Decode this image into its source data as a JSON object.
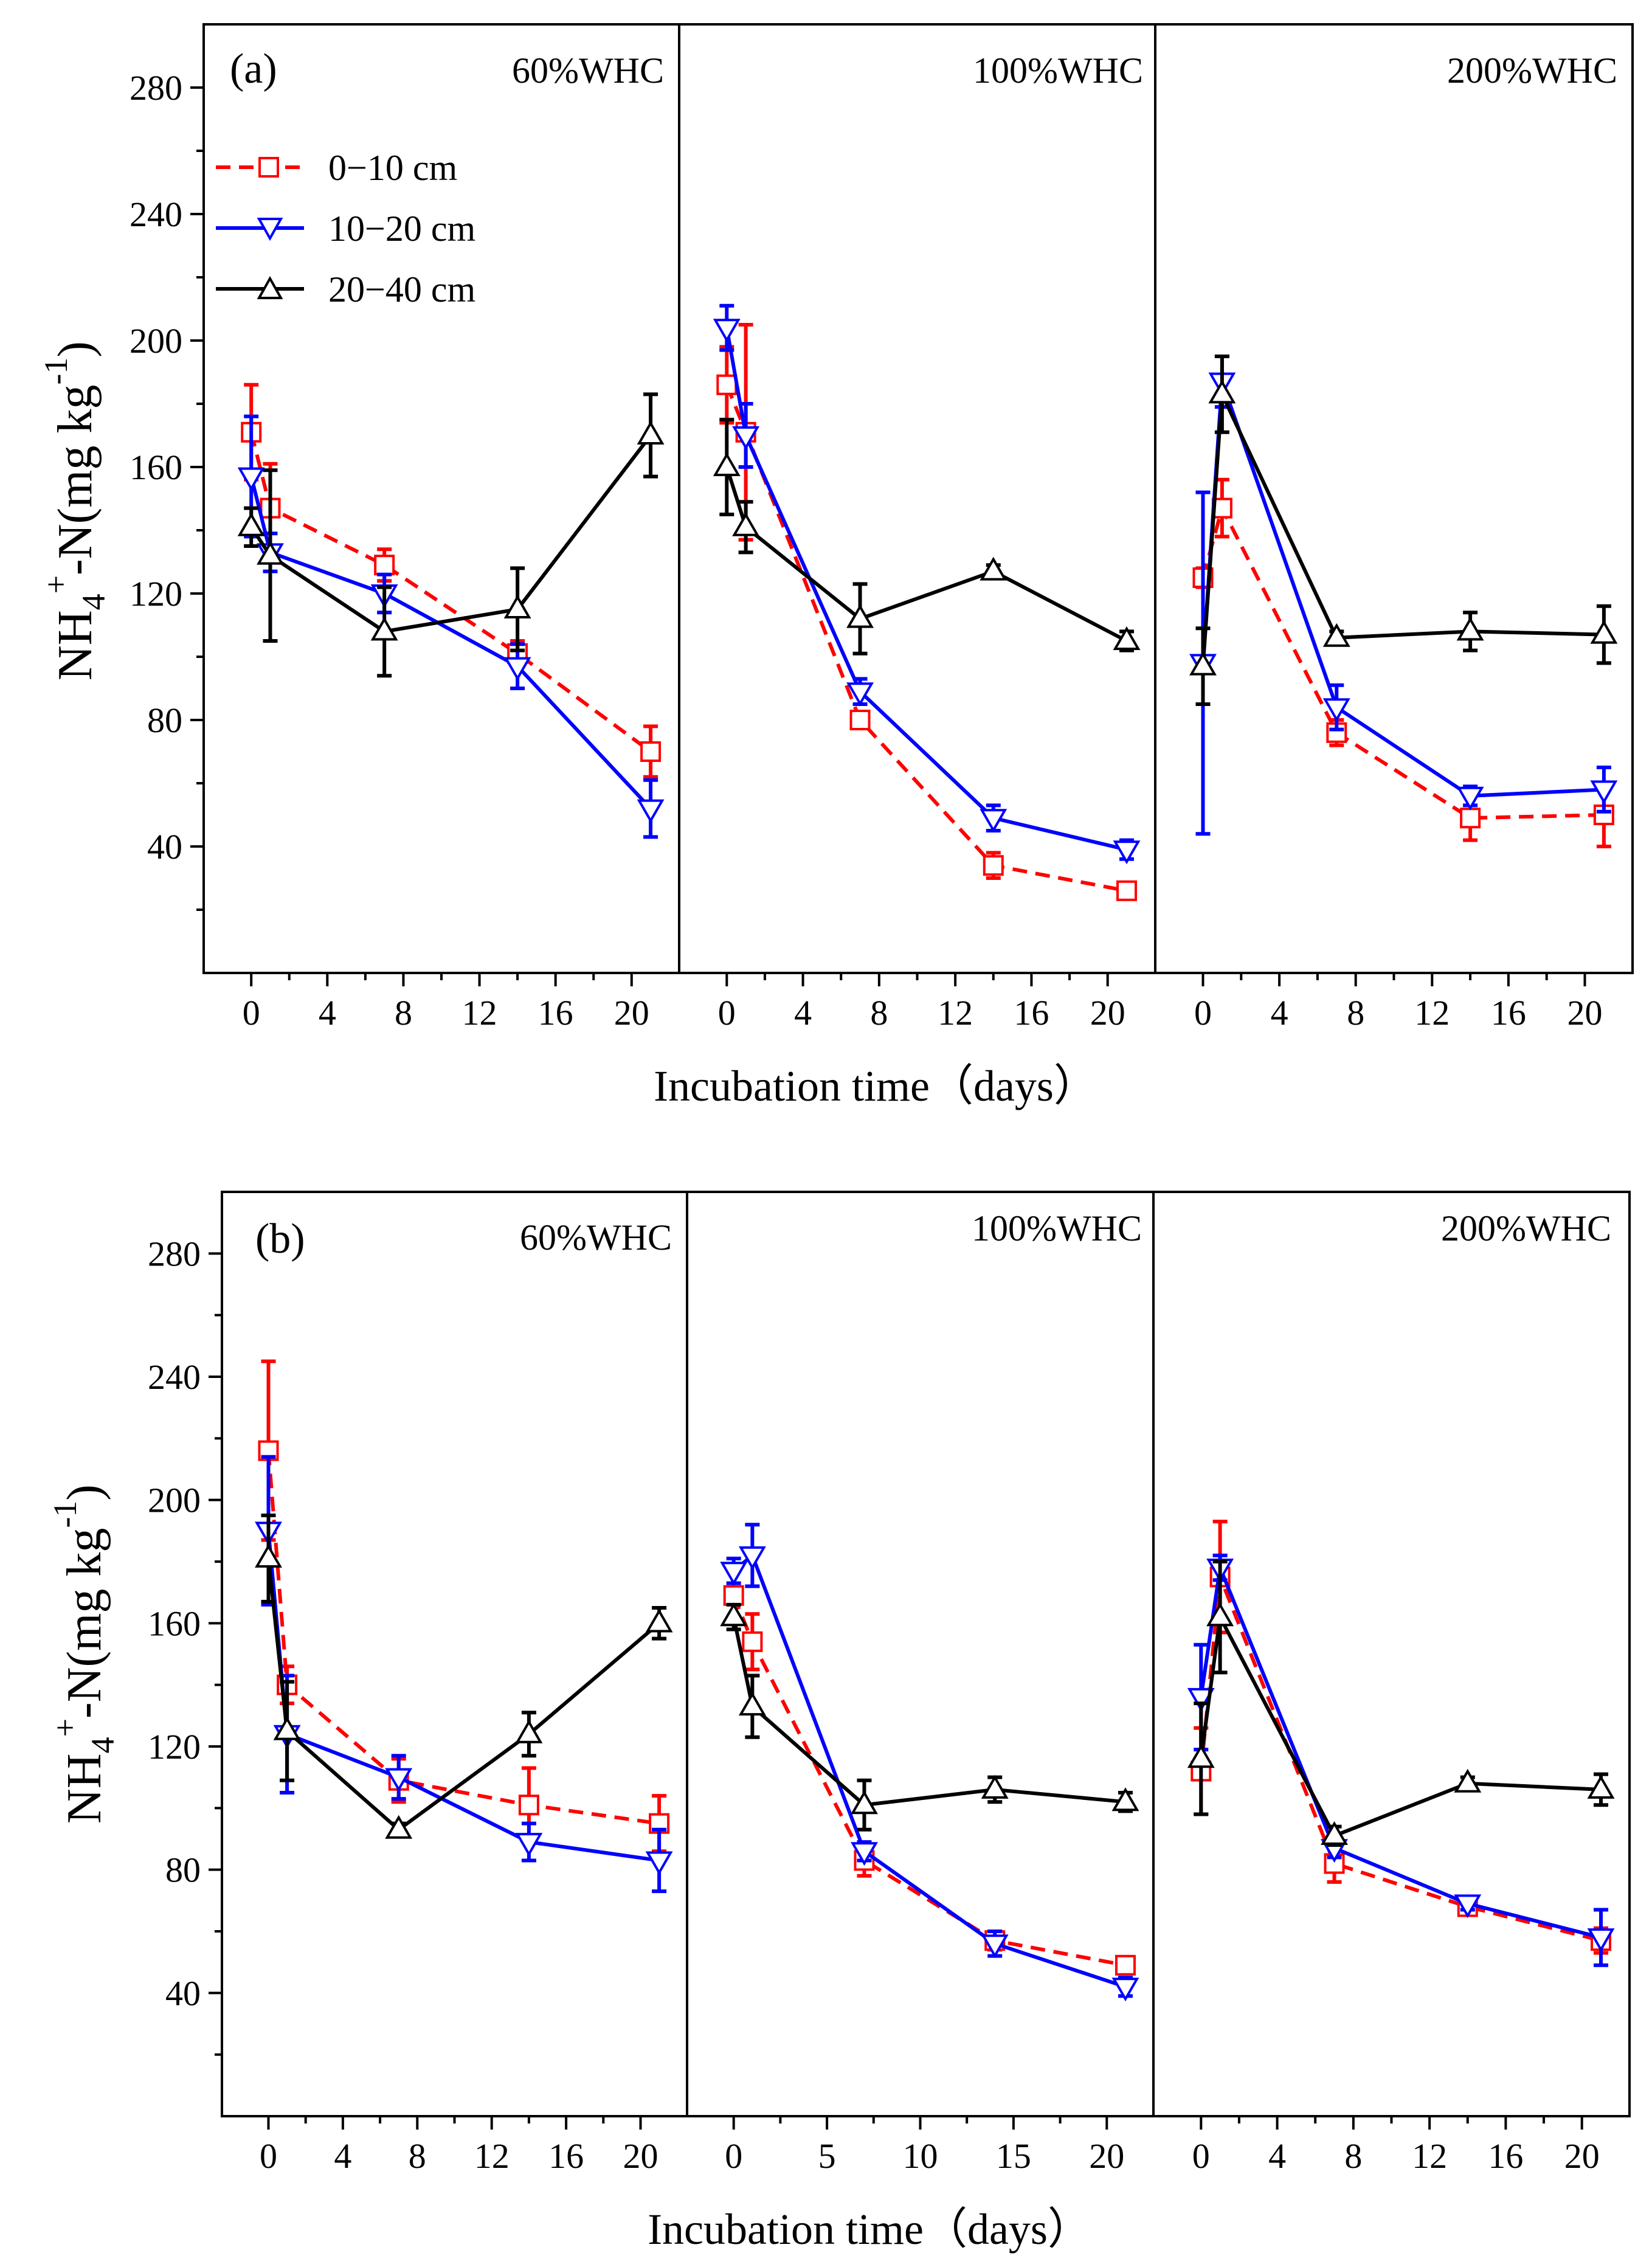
{
  "chart_data": [
    {
      "type": "line",
      "panel_label": "(a)",
      "ylabel": "NH4+-N(mg kg-1)",
      "ylabel_parts": {
        "main": "NH",
        "sub1": "4",
        "sup1": "+",
        "mid": "-N(mg kg",
        "sup2": "-1",
        "end": ")"
      },
      "xlabel": "Incubation time（days）",
      "ylim": [
        0,
        300
      ],
      "yticks": [
        40,
        80,
        120,
        160,
        200,
        240,
        280
      ],
      "yticklabels": [
        "40",
        "80",
        "120",
        "160",
        "200",
        "240",
        "280"
      ],
      "legend": [
        {
          "label": "0−10 cm",
          "color": "#ff0000",
          "marker": "square",
          "dash": true
        },
        {
          "label": "10−20 cm",
          "color": "#0000ff",
          "marker": "triangle-down",
          "dash": false
        },
        {
          "label": "20−40 cm",
          "color": "#000000",
          "marker": "triangle-up",
          "dash": false
        }
      ],
      "legend_position": "top-left",
      "subpanels": [
        {
          "title": "60%WHC",
          "xlim": [
            -2.5,
            22.5
          ],
          "xticks": [
            0,
            4,
            8,
            12,
            16,
            20
          ],
          "xticklabels": [
            "0",
            "4",
            "8",
            "12",
            "16",
            "20"
          ],
          "series": [
            {
              "name": "0−10 cm",
              "x": [
                0,
                1,
                7,
                14,
                21
              ],
              "y": [
                171,
                147,
                129,
                101,
                70
              ],
              "err": [
                15,
                14,
                5,
                4,
                8
              ]
            },
            {
              "name": "10−20 cm",
              "x": [
                0,
                1,
                7,
                14,
                21
              ],
              "y": [
                157,
                133,
                120,
                97,
                52
              ],
              "err": [
                19,
                6,
                6,
                7,
                9
              ]
            },
            {
              "name": "20−40 cm",
              "x": [
                0,
                1,
                7,
                14,
                21
              ],
              "y": [
                141,
                132,
                108,
                115,
                170
              ],
              "err": [
                6,
                27,
                14,
                13,
                13
              ]
            }
          ]
        },
        {
          "title": "100%WHC",
          "xlim": [
            -2.5,
            22.5
          ],
          "xticks": [
            0,
            4,
            8,
            12,
            16,
            20
          ],
          "xticklabels": [
            "0",
            "4",
            "8",
            "12",
            "16",
            "20"
          ],
          "series": [
            {
              "name": "0−10 cm",
              "x": [
                0,
                1,
                7,
                14,
                21
              ],
              "y": [
                186,
                171,
                80,
                34,
                26
              ],
              "err": [
                12,
                34,
                2,
                4,
                2
              ]
            },
            {
              "name": "10−20 cm",
              "x": [
                0,
                1,
                7,
                14,
                21
              ],
              "y": [
                204,
                170,
                89,
                49,
                39
              ],
              "err": [
                7,
                10,
                4,
                4,
                3
              ]
            },
            {
              "name": "20−40 cm",
              "x": [
                0,
                1,
                7,
                14,
                21
              ],
              "y": [
                160,
                141,
                112,
                127,
                105
              ],
              "err": [
                15,
                8,
                11,
                2,
                3
              ]
            }
          ]
        },
        {
          "title": "200%WHC",
          "xlim": [
            -2.5,
            22.5
          ],
          "xticks": [
            0,
            4,
            8,
            12,
            16,
            20
          ],
          "xticklabels": [
            "0",
            "4",
            "8",
            "12",
            "16",
            "20"
          ],
          "series": [
            {
              "name": "0−10 cm",
              "x": [
                0,
                1,
                7,
                14,
                21
              ],
              "y": [
                125,
                147,
                76,
                49,
                50
              ],
              "err": [
                3,
                9,
                4,
                7,
                10
              ]
            },
            {
              "name": "10−20 cm",
              "x": [
                0,
                1,
                7,
                14,
                21
              ],
              "y": [
                98,
                187,
                84,
                56,
                58
              ],
              "err": [
                54,
                8,
                7,
                3,
                7
              ]
            },
            {
              "name": "20−40 cm",
              "x": [
                0,
                1,
                7,
                14,
                21
              ],
              "y": [
                97,
                183,
                106,
                108,
                107
              ],
              "err": [
                12,
                12,
                2,
                6,
                9
              ]
            }
          ]
        }
      ]
    },
    {
      "type": "line",
      "panel_label": "(b)",
      "ylabel": "NH4+-N(mg kg-1)",
      "ylabel_parts": {
        "main": "NH",
        "sub1": "4",
        "sup1": "+",
        "mid": "-N(mg kg",
        "sup2": "-1",
        "end": ")"
      },
      "xlabel": "Incubation time（days）",
      "ylim": [
        0,
        300
      ],
      "yticks": [
        40,
        80,
        120,
        160,
        200,
        240,
        280
      ],
      "yticklabels": [
        "40",
        "80",
        "120",
        "160",
        "200",
        "240",
        "280"
      ],
      "subpanels": [
        {
          "title": "60%WHC",
          "xlim": [
            -2.5,
            22.5
          ],
          "xticks": [
            0,
            4,
            8,
            12,
            16,
            20
          ],
          "xticklabels": [
            "0",
            "4",
            "8",
            "12",
            "16",
            "20"
          ],
          "series": [
            {
              "name": "0−10 cm",
              "x": [
                0,
                1,
                7,
                14,
                21
              ],
              "y": [
                216,
                140,
                109,
                101,
                95
              ],
              "err": [
                29,
                6,
                7,
                12,
                9
              ]
            },
            {
              "name": "10−20 cm",
              "x": [
                0,
                1,
                7,
                14,
                21
              ],
              "y": [
                190,
                124,
                110,
                89,
                83
              ],
              "err": [
                24,
                19,
                7,
                6,
                10
              ]
            },
            {
              "name": "20−40 cm",
              "x": [
                0,
                1,
                7,
                14,
                21
              ],
              "y": [
                181,
                125,
                93,
                124,
                160
              ],
              "err": [
                14,
                16,
                2,
                7,
                5
              ]
            }
          ]
        },
        {
          "title": "100%WHC",
          "xlim": [
            -2.5,
            22.5
          ],
          "xticks": [
            0,
            5,
            10,
            15,
            20
          ],
          "xticklabels": [
            "0",
            "5",
            "10",
            "15",
            "20"
          ],
          "series": [
            {
              "name": "0−10 cm",
              "x": [
                0,
                1,
                7,
                14,
                21
              ],
              "y": [
                169,
                154,
                83,
                57,
                49
              ],
              "err": [
                8,
                9,
                5,
                3,
                2
              ]
            },
            {
              "name": "10−20 cm",
              "x": [
                0,
                1,
                7,
                14,
                21
              ],
              "y": [
                177,
                182,
                86,
                56,
                42
              ],
              "err": [
                4,
                10,
                3,
                4,
                3
              ]
            },
            {
              "name": "20−40 cm",
              "x": [
                0,
                1,
                7,
                14,
                21
              ],
              "y": [
                162,
                133,
                101,
                106,
                102
              ],
              "err": [
                4,
                10,
                8,
                4,
                3
              ]
            }
          ]
        },
        {
          "title": "200%WHC",
          "xlim": [
            -2.5,
            22.5
          ],
          "xticks": [
            0,
            4,
            8,
            12,
            16,
            20
          ],
          "xticklabels": [
            "0",
            "4",
            "8",
            "12",
            "16",
            "20"
          ],
          "series": [
            {
              "name": "0−10 cm",
              "x": [
                0,
                1,
                7,
                14,
                21
              ],
              "y": [
                112,
                175,
                82,
                68,
                57
              ],
              "err": [
                14,
                18,
                6,
                2,
                4
              ]
            },
            {
              "name": "10−20 cm",
              "x": [
                0,
                1,
                7,
                14,
                21
              ],
              "y": [
                136,
                178,
                87,
                69,
                58
              ],
              "err": [
                17,
                4,
                3,
                2,
                9
              ]
            },
            {
              "name": "20−40 cm",
              "x": [
                0,
                1,
                7,
                14,
                21
              ],
              "y": [
                116,
                162,
                91,
                108,
                106
              ],
              "err": [
                18,
                18,
                3,
                2,
                5
              ]
            }
          ]
        }
      ]
    }
  ]
}
